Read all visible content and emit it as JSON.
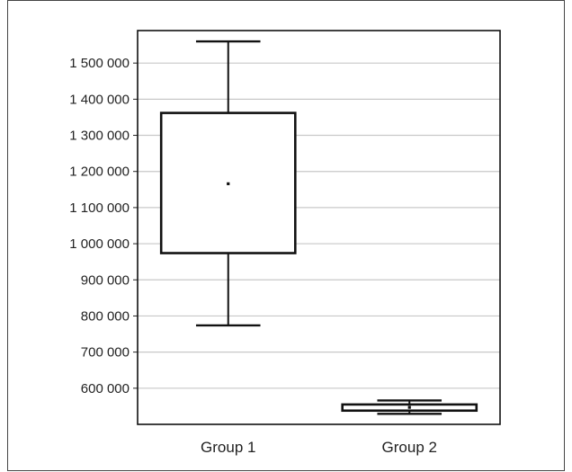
{
  "chart_data": {
    "type": "box",
    "title": "",
    "xlabel": "",
    "ylabel": "",
    "categories": [
      "Group 1",
      "Group 2"
    ],
    "ylim": [
      500000,
      1590000
    ],
    "yticks": [
      600000,
      700000,
      800000,
      900000,
      1000000,
      1100000,
      1200000,
      1300000,
      1400000,
      1500000
    ],
    "ytick_labels": [
      "600 000",
      "700 000",
      "800 000",
      "900 000",
      "1 000 000",
      "1 100 000",
      "1 200 000",
      "1 300 000",
      "1 400 000",
      "1 500 000"
    ],
    "grid": "horizontal",
    "boxes": [
      {
        "name": "Group 1",
        "min": 774000,
        "q1": 974000,
        "median": 1166000,
        "q3": 1362000,
        "max": 1560000
      },
      {
        "name": "Group 2",
        "min": 529000,
        "q1": 538000,
        "median": 547000,
        "q3": 555000,
        "max": 566000
      }
    ]
  }
}
